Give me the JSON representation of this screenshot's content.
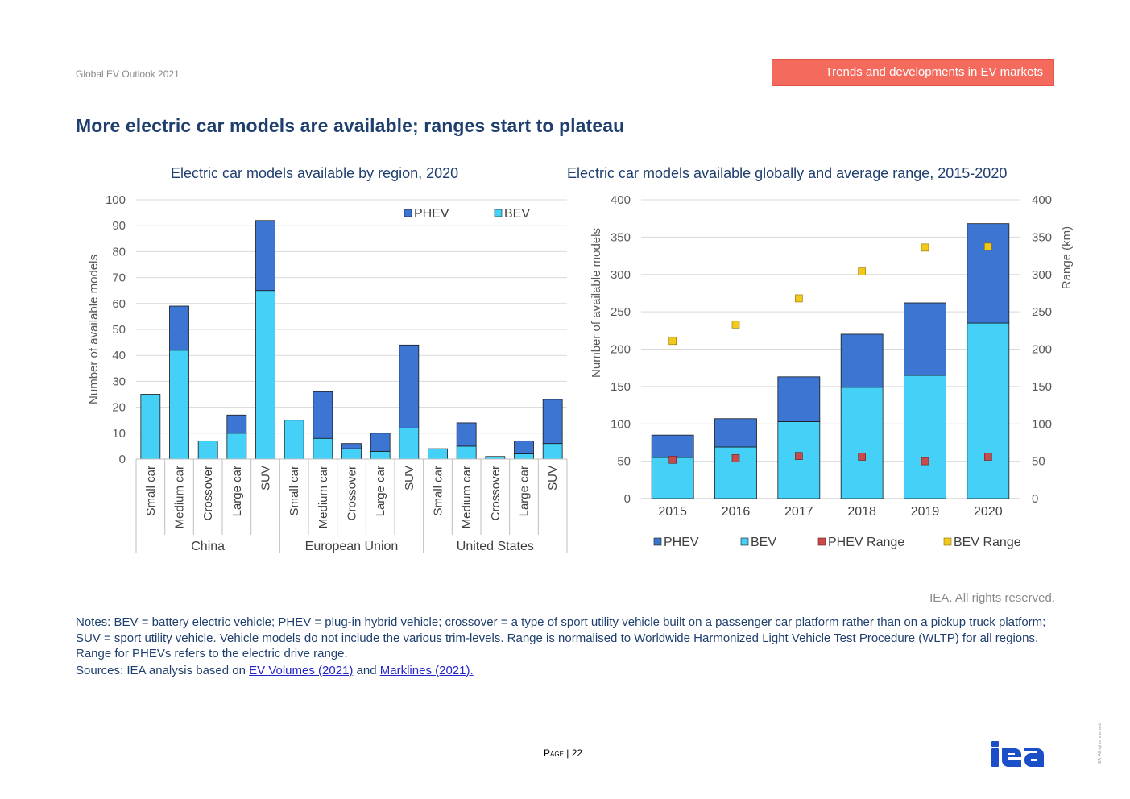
{
  "header": {
    "report_name": "Global EV Outlook 2021",
    "section_tag": "Trends and developments in EV markets"
  },
  "page_title": "More electric car models are available; ranges start to plateau",
  "colors": {
    "phev": "#3c75d2",
    "bev": "#45d0f8",
    "phev_range": "#c84a4a",
    "bev_range": "#f2c81d",
    "accent": "#f46b5e",
    "title": "#1f3f6e"
  },
  "chart_data": [
    {
      "type": "bar",
      "stacked": true,
      "title": "Electric car models available by region, 2020",
      "ylabel": "Number of available models",
      "ylim": [
        0,
        100
      ],
      "yticks": [
        0,
        10,
        20,
        30,
        40,
        50,
        60,
        70,
        80,
        90,
        100
      ],
      "legend_position": "top-right",
      "groups": [
        {
          "name": "China",
          "categories": [
            "Small car",
            "Medium car",
            "Crossover",
            "Large car",
            "SUV"
          ]
        },
        {
          "name": "European Union",
          "categories": [
            "Small car",
            "Medium car",
            "Crossover",
            "Large car",
            "SUV"
          ]
        },
        {
          "name": "United States",
          "categories": [
            "Small car",
            "Medium car",
            "Crossover",
            "Large car",
            "SUV"
          ]
        }
      ],
      "series": [
        {
          "name": "BEV",
          "values": [
            25,
            42,
            7,
            10,
            65,
            15,
            8,
            4,
            3,
            12,
            4,
            5,
            1,
            2,
            6
          ]
        },
        {
          "name": "PHEV",
          "values": [
            0,
            17,
            0,
            7,
            27,
            0,
            18,
            2,
            7,
            32,
            0,
            9,
            0,
            5,
            17
          ]
        }
      ]
    },
    {
      "type": "bar",
      "stacked": true,
      "title": "Electric car models available globally and average range, 2015-2020",
      "ylabel": "Number of available models",
      "y2label": "Range (km)",
      "ylim": [
        0,
        400
      ],
      "y2lim": [
        0,
        400
      ],
      "yticks": [
        0,
        50,
        100,
        150,
        200,
        250,
        300,
        350,
        400
      ],
      "legend_position": "bottom",
      "categories": [
        "2015",
        "2016",
        "2017",
        "2018",
        "2019",
        "2020"
      ],
      "series": [
        {
          "name": "PHEV",
          "kind": "bar",
          "values": [
            30,
            38,
            60,
            71,
            97,
            133
          ]
        },
        {
          "name": "BEV",
          "kind": "bar",
          "values": [
            55,
            69,
            103,
            149,
            165,
            235
          ]
        },
        {
          "name": "PHEV Range",
          "kind": "scatter",
          "axis": "right",
          "values": [
            52,
            54,
            57,
            56,
            50,
            56
          ]
        },
        {
          "name": "BEV Range",
          "kind": "scatter",
          "axis": "right",
          "values": [
            211,
            233,
            268,
            304,
            336,
            337
          ]
        }
      ]
    }
  ],
  "footer": {
    "rights": "IEA. All rights reserved.",
    "notes": "Notes: BEV = battery electric vehicle; PHEV = plug-in hybrid vehicle; crossover = a type of sport utility vehicle built on a passenger car platform rather than on a pickup truck platform; SUV = sport utility vehicle. Vehicle models do not include the various trim-levels. Range is normalised to Worldwide Harmonized Light Vehicle Test Procedure (WLTP) for all regions. Range for PHEVs refers to the electric drive range.",
    "sources_prefix": "Sources: IEA analysis based on ",
    "source_link_1": "EV Volumes (2021)",
    "sources_and": " and ",
    "source_link_2": "Marklines (2021).",
    "page_label": "Page",
    "page_separator": " | ",
    "page_number": "22",
    "vertical_rights": "IEA. All rights reserved.",
    "logo_text": "iea"
  }
}
